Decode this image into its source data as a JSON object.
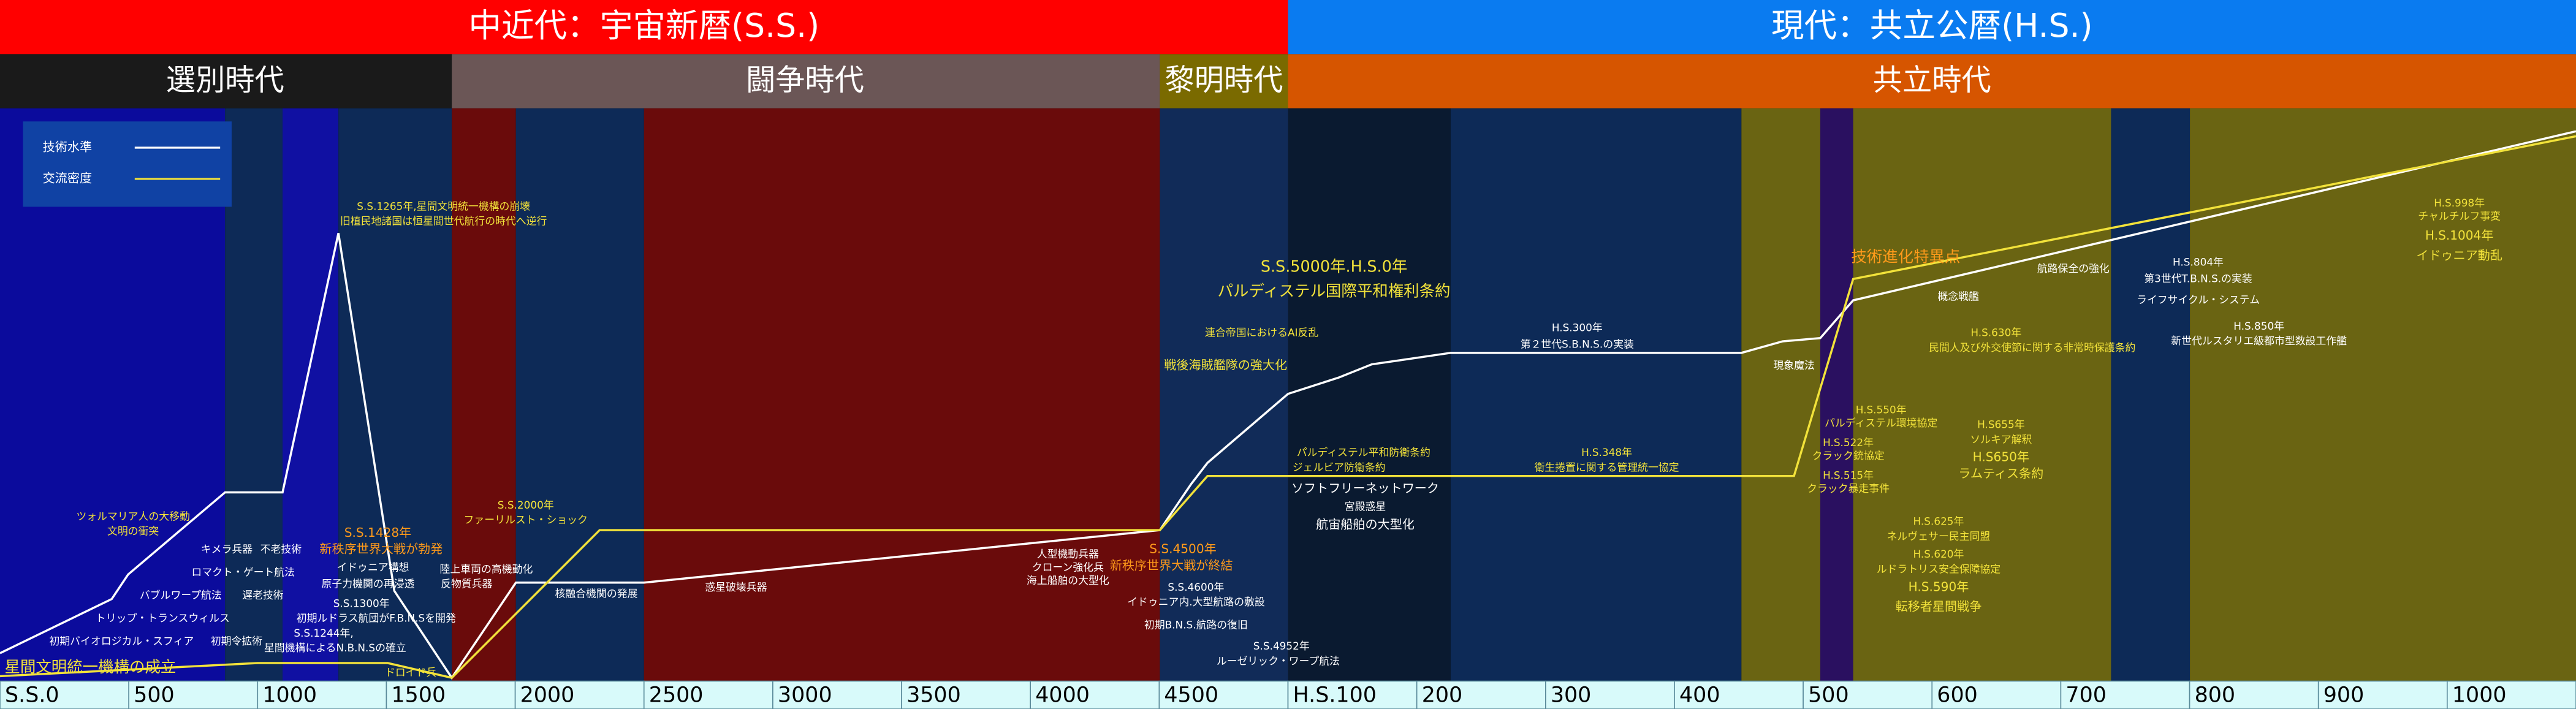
{
  "header": {
    "left": "中近代：宇宙新暦(S.S.)",
    "right": "現代：共立公暦(H.S.)"
  },
  "eras": [
    "選別時代",
    "闘争時代",
    "黎明時代",
    "共立時代"
  ],
  "legend": [
    "技術水準",
    "交流密度"
  ],
  "annotations": [
    "ツォルマリア人の大移動",
    "文明の衝突",
    "S.S.1428年",
    "新秩序世界大戦が勃発",
    "S.S.2000年",
    "ファーリルスト・ショック",
    "S.S.1265年,星間文明統一機構の崩壊",
    "旧植民地諸国は恒星間世代航行の時代へ逆行",
    "S.S.4500年",
    "新秩序世界大戦が終結",
    "S.S.5000年.H.S.0年",
    "パルディステル国際平和権利条約",
    "連合帝国におけるAI反乱",
    "戦後海賊艦隊の強大化",
    "パルディステル平和防衛条約",
    "ジェルビア防衛条約",
    "H.S.348年",
    "衛生捲置に関する管理統一協定",
    "技術進化特異点",
    "H.S.630年",
    "民間人及び外交使節に関する非常時保護条約",
    "H.S.550年",
    "パルディステル環境協定",
    "H.S.522年",
    "クラック銃協定",
    "H.S.515年",
    "クラック暴走事件",
    "H.S655年",
    "ソルキア解釈",
    "H.S650年",
    "ラムティス条約",
    "H.S.625年",
    "ネルヴェサー民主同盟",
    "H.S.620年",
    "ルドラトリス安全保障協定",
    "H.S.590年",
    "転移者星間戦争",
    "H.S.998年",
    "チャルチルフ事変",
    "H.S.1004年",
    "イドゥニア動乱",
    "星間文明統一機構の成立",
    "ドロイド兵",
    "キメラ兵器",
    "不老技術",
    "ロマクト・ゲート航法",
    "遅老技術",
    "バブルワープ航法",
    "トリップ・トランスウィルス",
    "初期バイオロジカル・スフィア",
    "初期令拡術",
    "S.S.1244年,",
    "星間機構によるN.B.N.Sの確立",
    "イドゥニア構想",
    "原子力機関の再浸透",
    "S.S.1300年",
    "初期ルドラス航団がF.B.N.Sを開発",
    "陸上車両の高機動化",
    "反物質兵器",
    "核融合機関の発展",
    "惑星破壊兵器",
    "人型機動兵器",
    "クローン強化兵",
    "海上船舶の大型化",
    "S.S.4600年",
    "イドゥニア内.大型航路の敷設",
    "初期B.N.S.航路の復旧",
    "S.S.4952年",
    "ルーゼリック・ワープ航法",
    "ソフトフリーネットワーク",
    "宮殿惑星",
    "航宙船舶の大型化",
    "H.S.300年",
    "第２世代S.B.N.S.の実装",
    "現象魔法",
    "概念戦艦",
    "航路保全の強化",
    "H.S.804年",
    "第3世代T.B.N.S.の実装",
    "ライフサイクル・システム",
    "H.S.850年",
    "新世代ルスタリエ級都市型数設工作艦"
  ],
  "axis": [
    "S.S.0",
    "500",
    "1000",
    "1500",
    "2000",
    "2500",
    "3000",
    "3500",
    "4000",
    "4500",
    "H.S.100",
    "200",
    "300",
    "400",
    "500",
    "600",
    "700",
    "800",
    "900",
    "1000"
  ]
}
